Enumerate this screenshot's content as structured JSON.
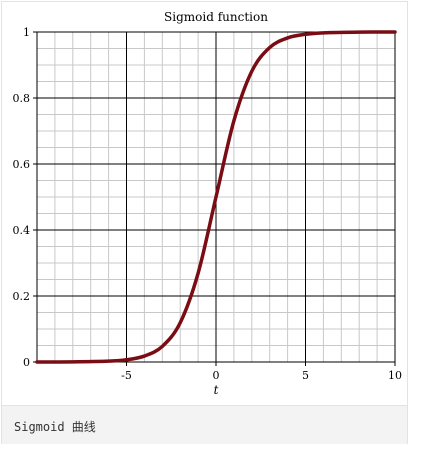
{
  "chart_data": {
    "type": "line",
    "title": "Sigmoid function",
    "xlabel": "t",
    "ylabel": "",
    "xlim": [
      -10,
      10
    ],
    "ylim": [
      0,
      1
    ],
    "grid": true,
    "x_ticks": [
      -5,
      0,
      5,
      10
    ],
    "x_tick_labels": [
      "-5",
      "0",
      "5",
      "10"
    ],
    "y_ticks": [
      0,
      0.2,
      0.4,
      0.6,
      0.8,
      1
    ],
    "y_tick_labels": [
      "0",
      "0.2",
      "0.4",
      "0.6",
      "0.8",
      "1"
    ],
    "line_color": "#7a0c14",
    "series": [
      {
        "x": [
          -10,
          -8,
          -6,
          -5,
          -4,
          -3,
          -2,
          -1,
          0,
          1,
          2,
          3,
          4,
          5,
          6,
          8,
          10
        ],
        "y": [
          4.54e-05,
          0.000335,
          0.00247,
          0.00669,
          0.018,
          0.0474,
          0.119,
          0.269,
          0.5,
          0.731,
          0.881,
          0.953,
          0.982,
          0.993,
          0.9975,
          0.99966,
          0.99995
        ]
      }
    ]
  },
  "caption": "Sigmoid 曲线"
}
